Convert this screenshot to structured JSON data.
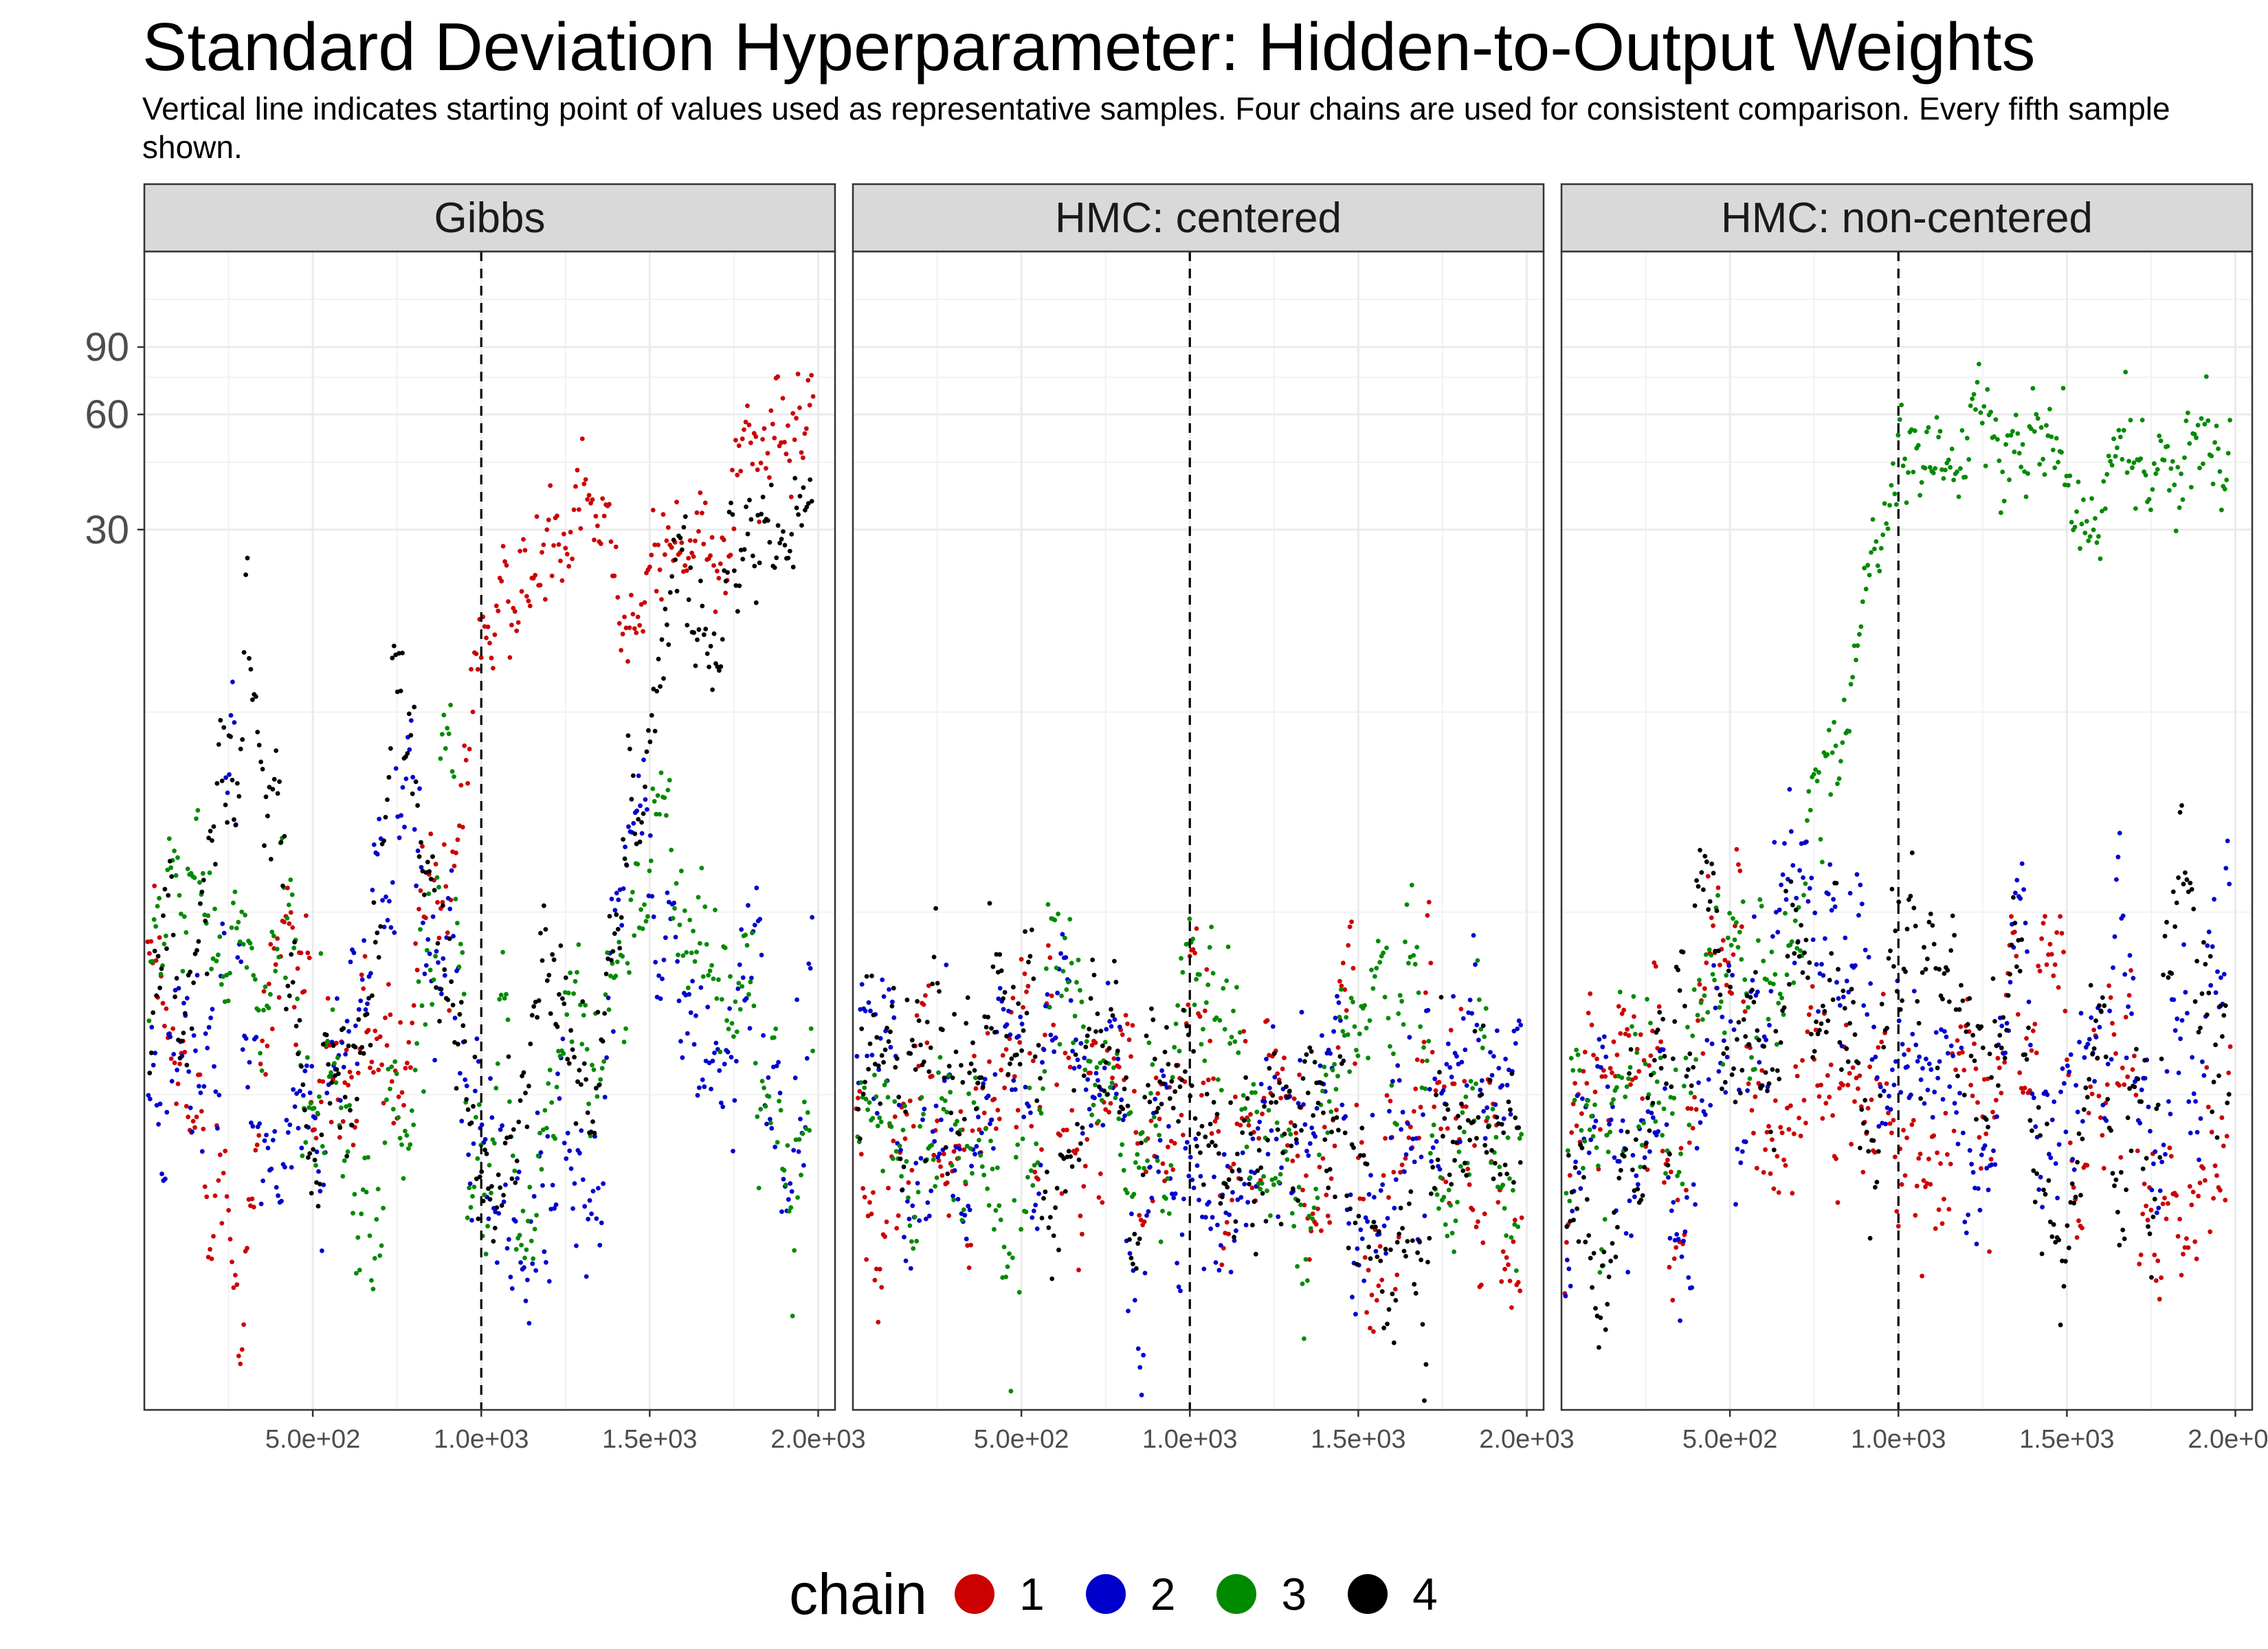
{
  "chart_data": {
    "type": "scatter",
    "title": "Standard Deviation Hyperparameter: Hidden-to-Output Weights",
    "subtitle": "Vertical line indicates starting point of values used as representative samples. Four chains are used for consistent comparison. Every fifth sample shown.",
    "xlabel": "",
    "ylabel": "",
    "y_scale": "log",
    "x_range": [
      0,
      2050
    ],
    "y_range": [
      0.15,
      160
    ],
    "x_ticks": [
      500,
      1000,
      1500,
      2000
    ],
    "x_tick_labels": [
      "5.0e+02",
      "1.0e+03",
      "1.5e+03",
      "2.0e+03"
    ],
    "y_ticks": [
      30,
      60,
      90
    ],
    "y_tick_labels": [
      "30",
      "60",
      "90"
    ],
    "vline_x": 1000,
    "sample_step": 5,
    "legend": {
      "title": "chain",
      "entries": [
        {
          "label": "1",
          "color": "#cc0000"
        },
        {
          "label": "2",
          "color": "#0000cc"
        },
        {
          "label": "3",
          "color": "#008a00"
        },
        {
          "label": "4",
          "color": "#000000"
        }
      ]
    },
    "panels": [
      {
        "title": "Gibbs",
        "series": [
          {
            "chain": "1",
            "segments": [
              [
                0,
                1.5,
                0.55,
                0.5
              ],
              [
                100,
                0.8,
                0.5,
                0.5
              ],
              [
                250,
                0.75,
                0.5,
                0.45
              ],
              [
                350,
                1.5,
                0.5,
                0.55
              ],
              [
                450,
                2.5,
                0.5,
                0.6
              ],
              [
                520,
                1.3,
                0.5,
                0.4
              ],
              [
                650,
                1.0,
                0.45,
                0.4
              ],
              [
                750,
                1.6,
                0.5,
                0.4
              ],
              [
                850,
                3.5,
                0.5,
                0.45
              ],
              [
                930,
                6.0,
                0.3,
                0.3
              ],
              [
                980,
                16.0,
                0.2,
                0.15
              ],
              [
                1050,
                20.0,
                0.2,
                0.3
              ],
              [
                1300,
                26.0,
                0.2,
                0.25
              ],
              [
                1550,
                27.0,
                0.2,
                0.3
              ],
              [
                1800,
                40.0,
                0.2,
                0.25
              ],
              [
                2000,
                55.0,
                0.2,
                0.2
              ]
            ]
          },
          {
            "chain": "2",
            "segments": [
              [
                0,
                1.1,
                0.55,
                0.4
              ],
              [
                120,
                0.9,
                0.5,
                0.5
              ],
              [
                250,
                3.5,
                0.5,
                0.55
              ],
              [
                350,
                1.2,
                0.5,
                0.5
              ],
              [
                450,
                0.9,
                0.5,
                0.45
              ],
              [
                580,
                1.4,
                0.5,
                0.5
              ],
              [
                650,
                4.0,
                0.5,
                0.45
              ],
              [
                750,
                7.0,
                0.5,
                0.4
              ],
              [
                850,
                2.0,
                0.5,
                0.5
              ],
              [
                1000,
                0.6,
                0.5,
                0.45
              ],
              [
                1200,
                0.7,
                0.55,
                0.45
              ],
              [
                1400,
                1.3,
                0.5,
                0.4
              ],
              [
                1500,
                3.0,
                0.5,
                0.5
              ],
              [
                1650,
                1.0,
                0.55,
                0.5
              ],
              [
                1800,
                2.0,
                0.5,
                0.5
              ],
              [
                1900,
                1.3,
                0.55,
                0.5
              ],
              [
                2000,
                1.2,
                0.5,
                0.5
              ]
            ]
          },
          {
            "chain": "3",
            "segments": [
              [
                0,
                1.0,
                0.55,
                0.5
              ],
              [
                80,
                3.0,
                0.5,
                0.55
              ],
              [
                160,
                4.0,
                0.5,
                0.5
              ],
              [
                250,
                2.0,
                0.5,
                0.5
              ],
              [
                350,
                1.3,
                0.5,
                0.45
              ],
              [
                450,
                2.5,
                0.5,
                0.5
              ],
              [
                550,
                0.8,
                0.5,
                0.45
              ],
              [
                650,
                0.9,
                0.5,
                0.5
              ],
              [
                800,
                1.1,
                0.5,
                0.55
              ],
              [
                900,
                6.0,
                0.5,
                0.4
              ],
              [
                980,
                1.2,
                0.5,
                0.45
              ],
              [
                1150,
                0.7,
                0.5,
                0.5
              ],
              [
                1300,
                1.4,
                0.5,
                0.5
              ],
              [
                1450,
                4.0,
                0.4,
                0.45
              ],
              [
                1600,
                6.0,
                0.35,
                0.5
              ],
              [
                1750,
                1.8,
                0.5,
                0.5
              ],
              [
                2000,
                1.3,
                0.5,
                0.5
              ]
            ]
          },
          {
            "chain": "4",
            "segments": [
              [
                0,
                1.2,
                0.55,
                0.5
              ],
              [
                150,
                2.5,
                0.5,
                0.6
              ],
              [
                300,
                12.0,
                0.35,
                0.4
              ],
              [
                400,
                6.0,
                0.45,
                0.5
              ],
              [
                500,
                1.4,
                0.5,
                0.45
              ],
              [
                650,
                2.0,
                0.5,
                0.5
              ],
              [
                750,
                8.0,
                0.5,
                0.45
              ],
              [
                850,
                2.5,
                0.5,
                0.5
              ],
              [
                950,
                0.8,
                0.5,
                0.5
              ],
              [
                1100,
                0.8,
                0.5,
                0.5
              ],
              [
                1250,
                1.6,
                0.5,
                0.4
              ],
              [
                1400,
                2.2,
                0.4,
                0.5
              ],
              [
                1500,
                7.0,
                0.35,
                0.3
              ],
              [
                1600,
                25.0,
                0.25,
                0.25
              ],
              [
                1800,
                22.0,
                0.25,
                0.3
              ],
              [
                2000,
                40.0,
                0.2,
                0.2
              ]
            ]
          }
        ]
      },
      {
        "title": "HMC: centered",
        "series": [
          {
            "chain": "1",
            "segments": [
              [
                0,
                0.75,
                0.5,
                0.5
              ],
              [
                200,
                0.9,
                0.5,
                0.5
              ],
              [
                500,
                0.85,
                0.5,
                0.5
              ],
              [
                800,
                0.9,
                0.5,
                0.5
              ],
              [
                1100,
                0.8,
                0.5,
                0.5
              ],
              [
                1400,
                0.75,
                0.5,
                0.5
              ],
              [
                1700,
                1.0,
                0.5,
                0.5
              ],
              [
                2000,
                0.7,
                0.5,
                0.5
              ]
            ]
          },
          {
            "chain": "2",
            "segments": [
              [
                0,
                0.9,
                0.5,
                0.5
              ],
              [
                300,
                0.95,
                0.5,
                0.5
              ],
              [
                600,
                0.85,
                0.5,
                0.5
              ],
              [
                900,
                0.8,
                0.5,
                0.5
              ],
              [
                1200,
                0.85,
                0.5,
                0.5
              ],
              [
                1500,
                0.8,
                0.5,
                0.5
              ],
              [
                2000,
                0.8,
                0.5,
                0.5
              ]
            ]
          },
          {
            "chain": "3",
            "segments": [
              [
                0,
                0.7,
                0.5,
                0.5
              ],
              [
                300,
                0.85,
                0.5,
                0.5
              ],
              [
                600,
                0.9,
                0.5,
                0.5
              ],
              [
                950,
                1.0,
                0.5,
                0.5
              ],
              [
                1000,
                1.6,
                0.5,
                0.4
              ],
              [
                1100,
                0.9,
                0.5,
                0.5
              ],
              [
                1400,
                0.95,
                0.5,
                0.5
              ],
              [
                1700,
                1.1,
                0.5,
                0.5
              ],
              [
                2000,
                0.9,
                0.5,
                0.5
              ]
            ]
          },
          {
            "chain": "4",
            "segments": [
              [
                0,
                0.85,
                0.5,
                0.5
              ],
              [
                250,
                1.3,
                0.5,
                0.45
              ],
              [
                400,
                0.9,
                0.5,
                0.5
              ],
              [
                700,
                1.0,
                0.5,
                0.5
              ],
              [
                1000,
                0.85,
                0.5,
                0.5
              ],
              [
                1300,
                0.8,
                0.5,
                0.5
              ],
              [
                1600,
                0.75,
                0.5,
                0.5
              ],
              [
                2000,
                0.85,
                0.5,
                0.5
              ]
            ]
          }
        ]
      },
      {
        "title": "HMC: non-centered",
        "series": [
          {
            "chain": "1",
            "segments": [
              [
                0,
                0.4,
                0.5,
                0.4
              ],
              [
                80,
                0.9,
                0.5,
                0.5
              ],
              [
                300,
                1.0,
                0.5,
                0.5
              ],
              [
                500,
                2.5,
                0.4,
                0.5
              ],
              [
                600,
                1.0,
                0.5,
                0.5
              ],
              [
                900,
                0.8,
                0.5,
                0.5
              ],
              [
                1300,
                1.0,
                0.5,
                0.5
              ],
              [
                1650,
                0.9,
                0.5,
                0.5
              ],
              [
                2000,
                0.9,
                0.5,
                0.5
              ]
            ]
          },
          {
            "chain": "2",
            "segments": [
              [
                0,
                0.45,
                0.5,
                0.4
              ],
              [
                100,
                0.8,
                0.5,
                0.5
              ],
              [
                400,
                1.0,
                0.5,
                0.5
              ],
              [
                700,
                3.0,
                0.5,
                0.4
              ],
              [
                800,
                3.5,
                0.4,
                0.3
              ],
              [
                950,
                1.3,
                0.5,
                0.5
              ],
              [
                1300,
                1.3,
                0.5,
                0.5
              ],
              [
                1700,
                1.0,
                0.5,
                0.5
              ],
              [
                2000,
                1.1,
                0.5,
                0.5
              ]
            ]
          },
          {
            "chain": "3",
            "segments": [
              [
                0,
                0.5,
                0.5,
                0.4
              ],
              [
                150,
                1.1,
                0.5,
                0.5
              ],
              [
                450,
                1.8,
                0.5,
                0.5
              ],
              [
                650,
                2.5,
                0.5,
                0.4
              ],
              [
                800,
                8.0,
                0.25,
                0.2
              ],
              [
                900,
                22.0,
                0.15,
                0.15
              ],
              [
                1000,
                45.0,
                0.15,
                0.15
              ],
              [
                1250,
                52.0,
                0.15,
                0.2
              ],
              [
                1400,
                50.0,
                0.2,
                0.2
              ],
              [
                1550,
                30.0,
                0.2,
                0.15
              ],
              [
                1650,
                45.0,
                0.15,
                0.15
              ],
              [
                2000,
                48.0,
                0.15,
                0.15
              ]
            ]
          },
          {
            "chain": "4",
            "segments": [
              [
                0,
                0.5,
                0.5,
                0.4
              ],
              [
                150,
                1.2,
                0.5,
                0.5
              ],
              [
                450,
                2.0,
                0.5,
                0.5
              ],
              [
                550,
                1.3,
                0.5,
                0.5
              ],
              [
                700,
                2.0,
                0.5,
                0.5
              ],
              [
                1000,
                1.1,
                0.5,
                0.5
              ],
              [
                1300,
                1.2,
                0.5,
                0.5
              ],
              [
                1650,
                1.0,
                0.5,
                0.5
              ],
              [
                2000,
                1.0,
                0.5,
                0.5
              ]
            ]
          }
        ]
      }
    ]
  }
}
